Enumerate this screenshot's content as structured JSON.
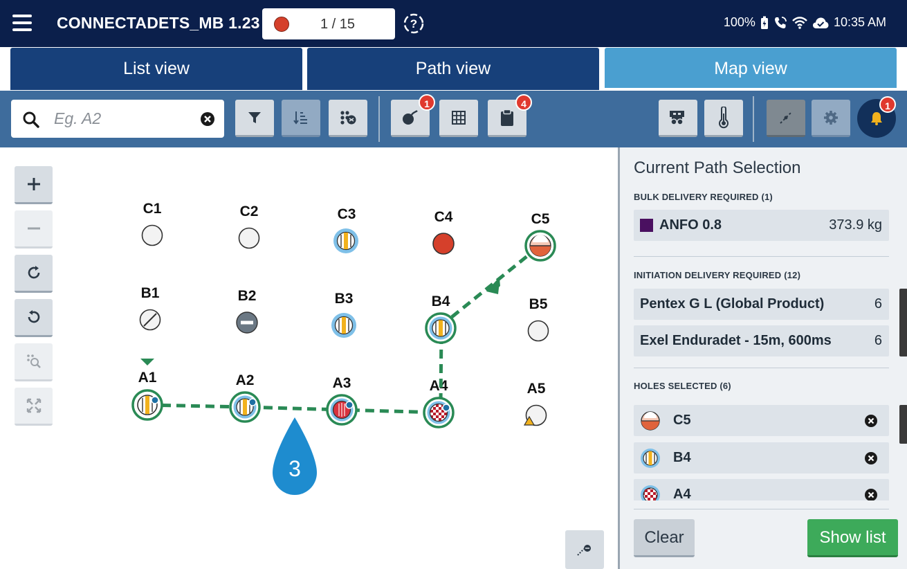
{
  "header": {
    "app_title": "CONNECTADETS_MB 1.23",
    "counter": "1 / 15",
    "status": {
      "battery": "100%",
      "time": "10:35 AM"
    }
  },
  "tabs": [
    {
      "label": "List view"
    },
    {
      "label": "Path view"
    },
    {
      "label": "Map view",
      "active": true
    }
  ],
  "toolbar": {
    "search_placeholder": "Eg. A2",
    "search_value": "",
    "badges": {
      "explosive": "1",
      "clipboard": "4",
      "notifications": "1"
    }
  },
  "map": {
    "holes": [
      {
        "id": "C1",
        "state": "empty"
      },
      {
        "id": "C2",
        "state": "empty"
      },
      {
        "id": "C3",
        "state": "primer"
      },
      {
        "id": "C4",
        "state": "red"
      },
      {
        "id": "C5",
        "state": "half"
      },
      {
        "id": "B1",
        "state": "blocked"
      },
      {
        "id": "B2",
        "state": "minus"
      },
      {
        "id": "B3",
        "state": "primer"
      },
      {
        "id": "B4",
        "state": "primer"
      },
      {
        "id": "B5",
        "state": "empty"
      },
      {
        "id": "A1",
        "state": "primer-dark"
      },
      {
        "id": "A2",
        "state": "primer"
      },
      {
        "id": "A3",
        "state": "red-stripe"
      },
      {
        "id": "A4",
        "state": "checker"
      },
      {
        "id": "A5",
        "state": "warning"
      }
    ],
    "marker_count": "3"
  },
  "panel": {
    "title": "Current Path Selection",
    "bulk_heading": "BULK DELIVERY REQUIRED (1)",
    "bulk": {
      "name": "ANFO 0.8",
      "amount": "373.9 kg",
      "color": "#4a1060"
    },
    "initiation_heading": "INITIATION DELIVERY REQUIRED (12)",
    "initiation": [
      {
        "name": "Pentex G L (Global Product)",
        "qty": "6"
      },
      {
        "name": "Exel Enduradet - 15m, 600ms",
        "qty": "6"
      }
    ],
    "holes_heading": "HOLES SELECTED (6)",
    "holes_selected": [
      {
        "id": "C5"
      },
      {
        "id": "B4"
      },
      {
        "id": "A4"
      }
    ],
    "clear_label": "Clear",
    "show_list_label": "Show list"
  },
  "colors": {
    "header_bg": "#0b1f4b",
    "tab_bg": "#17407a",
    "tab_active": "#4a9fd0",
    "toolbar_bg": "#3e6c9c",
    "path_green": "#2a8a55",
    "badge_red": "#e0392e",
    "marker_blue": "#1e8ccf"
  }
}
